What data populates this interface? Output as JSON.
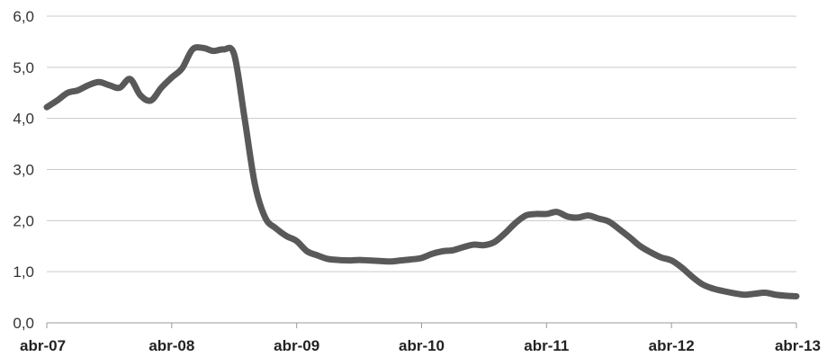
{
  "chart_data": {
    "type": "line",
    "ylim": [
      0,
      6
    ],
    "y_ticks": [
      "0,0",
      "1,0",
      "2,0",
      "3,0",
      "4,0",
      "5,0",
      "6,0"
    ],
    "y_tick_values": [
      0,
      1,
      2,
      3,
      4,
      5,
      6
    ],
    "x_tick_labels": [
      "abr-07",
      "abr-08",
      "abr-09",
      "abr-10",
      "abr-11",
      "abr-12",
      "abr-13"
    ],
    "x_tick_positions": [
      0,
      12,
      24,
      36,
      48,
      60,
      72
    ],
    "x_range": [
      0,
      72
    ],
    "grid": true,
    "legend": "none",
    "color": "#595959",
    "series": [
      {
        "x": [
          0,
          1,
          2,
          3,
          4,
          5,
          6,
          7,
          8,
          9,
          10,
          11,
          12,
          13,
          14,
          15,
          16,
          17,
          18,
          19,
          20,
          21,
          22,
          23,
          24,
          25,
          26,
          27,
          28,
          29,
          30,
          31,
          32,
          33,
          34,
          35,
          36,
          37,
          38,
          39,
          40,
          41,
          42,
          43,
          44,
          45,
          46,
          47,
          48,
          49,
          50,
          51,
          52,
          53,
          54,
          55,
          56,
          57,
          58,
          59,
          60,
          61,
          62,
          63,
          64,
          65,
          66,
          67,
          68,
          69,
          70,
          71,
          72
        ],
        "values": [
          4.22,
          4.35,
          4.5,
          4.55,
          4.65,
          4.71,
          4.65,
          4.6,
          4.77,
          4.45,
          4.35,
          4.6,
          4.8,
          4.98,
          5.35,
          5.38,
          5.32,
          5.35,
          5.25,
          4.0,
          2.7,
          2.05,
          1.85,
          1.7,
          1.6,
          1.4,
          1.32,
          1.25,
          1.23,
          1.22,
          1.23,
          1.22,
          1.21,
          1.2,
          1.22,
          1.24,
          1.27,
          1.35,
          1.4,
          1.42,
          1.48,
          1.53,
          1.52,
          1.58,
          1.75,
          1.95,
          2.1,
          2.13,
          2.13,
          2.17,
          2.08,
          2.06,
          2.1,
          2.04,
          1.98,
          1.83,
          1.67,
          1.5,
          1.38,
          1.28,
          1.22,
          1.08,
          0.9,
          0.75,
          0.67,
          0.62,
          0.58,
          0.55,
          0.57,
          0.59,
          0.55,
          0.53,
          0.52
        ]
      }
    ]
  }
}
